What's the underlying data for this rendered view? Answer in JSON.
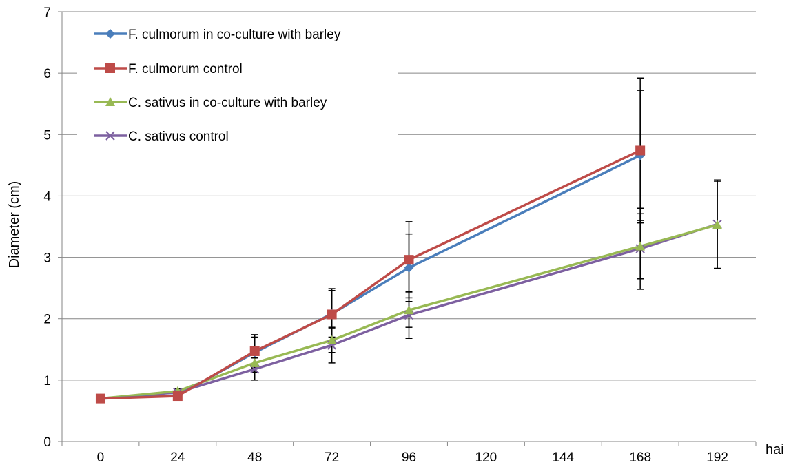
{
  "chart_data": {
    "type": "line",
    "title": "",
    "xlabel": "hai",
    "ylabel": "Diameter (cm)",
    "ylim": [
      0,
      7
    ],
    "yticks": [
      "0",
      "1",
      "2",
      "3",
      "4",
      "5",
      "6",
      "7"
    ],
    "categories": [
      "0",
      "24",
      "48",
      "72",
      "96",
      "120",
      "144",
      "168",
      "192"
    ],
    "grid": true,
    "legend_position": "top-left",
    "series": [
      {
        "name": "F. culmorum in co-culture with barley",
        "color": "#4a7ebb",
        "marker": "diamond",
        "x": [
          0,
          24,
          48,
          72,
          96,
          168
        ],
        "y": [
          0.7,
          0.75,
          1.45,
          2.08,
          2.83,
          4.66
        ],
        "err": [
          0.02,
          0.03,
          0.25,
          0.38,
          0.55,
          1.06
        ]
      },
      {
        "name": "F. culmorum control",
        "color": "#be4b48",
        "marker": "square",
        "x": [
          0,
          24,
          48,
          72,
          96,
          168
        ],
        "y": [
          0.7,
          0.74,
          1.47,
          2.07,
          2.96,
          4.74
        ],
        "err": [
          0.02,
          0.03,
          0.27,
          0.42,
          0.62,
          1.18
        ]
      },
      {
        "name": "C. sativus in co-culture with barley",
        "color": "#98b954",
        "marker": "triangle",
        "x": [
          0,
          24,
          48,
          72,
          96,
          168,
          192
        ],
        "y": [
          0.7,
          0.82,
          1.28,
          1.65,
          2.14,
          3.18,
          3.53
        ],
        "err": [
          0.02,
          0.04,
          0.15,
          0.2,
          0.28,
          0.53,
          0.71
        ]
      },
      {
        "name": "C. sativus control",
        "color": "#7d60a0",
        "marker": "x",
        "x": [
          0,
          24,
          48,
          72,
          96,
          168,
          192
        ],
        "y": [
          0.7,
          0.8,
          1.18,
          1.57,
          2.06,
          3.14,
          3.54
        ],
        "err": [
          0.02,
          0.04,
          0.18,
          0.29,
          0.38,
          0.66,
          0.72
        ]
      }
    ]
  }
}
